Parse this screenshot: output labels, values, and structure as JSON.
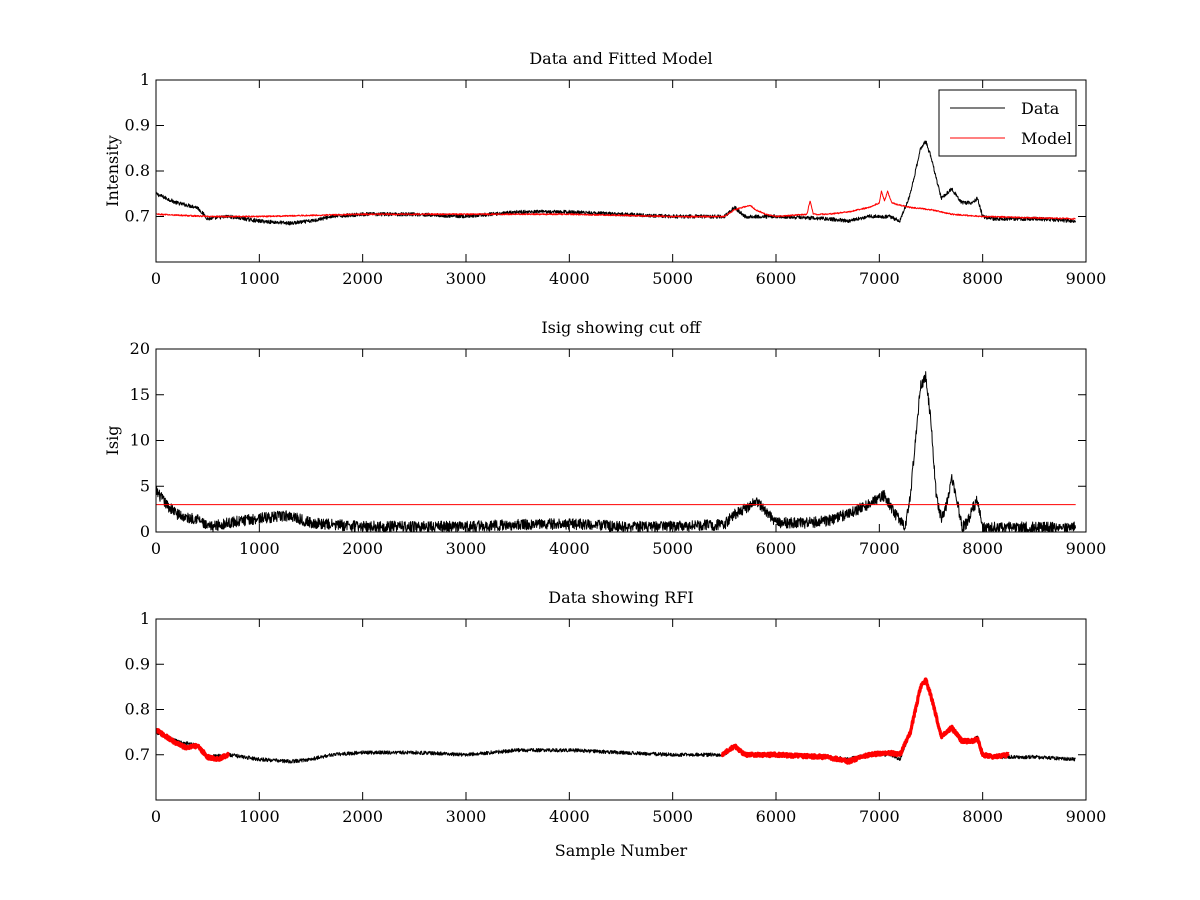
{
  "chart_data": [
    {
      "type": "line",
      "title": "Data and Fitted Model",
      "xlabel": "",
      "ylabel": "Intensity",
      "xlim": [
        0,
        9000
      ],
      "ylim": [
        0.6,
        1.0
      ],
      "xticks": [
        0,
        1000,
        2000,
        3000,
        4000,
        5000,
        6000,
        7000,
        8000,
        9000
      ],
      "yticks": [
        0.7,
        0.8,
        0.9,
        1
      ],
      "grid": false,
      "legend": {
        "position": "top-right",
        "entries": [
          "Data",
          "Model"
        ]
      },
      "series": [
        {
          "name": "Data",
          "color": "#000000",
          "noise": 0.004,
          "x": [
            0,
            100,
            200,
            300,
            400,
            500,
            700,
            1000,
            1300,
            1500,
            1700,
            2000,
            2500,
            3000,
            3500,
            4000,
            4500,
            5000,
            5500,
            5600,
            5700,
            6000,
            6500,
            6700,
            6900,
            7100,
            7200,
            7300,
            7400,
            7450,
            7500,
            7600,
            7700,
            7800,
            7900,
            7950,
            8000,
            8100,
            8500,
            8900
          ],
          "y": [
            0.75,
            0.74,
            0.73,
            0.725,
            0.72,
            0.695,
            0.7,
            0.69,
            0.685,
            0.69,
            0.7,
            0.705,
            0.705,
            0.7,
            0.71,
            0.71,
            0.705,
            0.7,
            0.7,
            0.72,
            0.7,
            0.7,
            0.695,
            0.69,
            0.7,
            0.7,
            0.69,
            0.75,
            0.85,
            0.865,
            0.83,
            0.74,
            0.76,
            0.73,
            0.73,
            0.74,
            0.7,
            0.695,
            0.695,
            0.69
          ]
        },
        {
          "name": "Model",
          "color": "#ff0000",
          "noise": 0.0015,
          "x": [
            0,
            500,
            1000,
            2000,
            3000,
            4000,
            5000,
            5500,
            5600,
            5750,
            5800,
            5900,
            6000,
            6300,
            6330,
            6360,
            6500,
            6700,
            6900,
            7000,
            7020,
            7050,
            7080,
            7120,
            7200,
            7300,
            7500,
            7700,
            8000,
            8900
          ],
          "y": [
            0.705,
            0.7,
            0.7,
            0.705,
            0.705,
            0.705,
            0.7,
            0.7,
            0.715,
            0.725,
            0.715,
            0.705,
            0.7,
            0.705,
            0.735,
            0.705,
            0.705,
            0.71,
            0.72,
            0.73,
            0.755,
            0.735,
            0.755,
            0.73,
            0.725,
            0.72,
            0.715,
            0.705,
            0.7,
            0.695
          ]
        }
      ]
    },
    {
      "type": "line",
      "title": "Isig showing cut off",
      "xlabel": "",
      "ylabel": "Isig",
      "xlim": [
        0,
        9000
      ],
      "ylim": [
        0,
        20
      ],
      "xticks": [
        0,
        1000,
        2000,
        3000,
        4000,
        5000,
        6000,
        7000,
        8000,
        9000
      ],
      "yticks": [
        0,
        5,
        10,
        15,
        20
      ],
      "grid": false,
      "series": [
        {
          "color": "#000000",
          "noise": 0.6,
          "x": [
            0,
            100,
            200,
            300,
            400,
            500,
            700,
            1000,
            1300,
            1500,
            1700,
            2000,
            2500,
            3000,
            3500,
            4000,
            4500,
            5000,
            5500,
            5600,
            5700,
            5800,
            6000,
            6300,
            6500,
            6700,
            6900,
            7050,
            7150,
            7250,
            7300,
            7350,
            7400,
            7450,
            7500,
            7550,
            7600,
            7650,
            7700,
            7750,
            7800,
            7850,
            7900,
            7950,
            8000,
            8100,
            8500,
            8900
          ],
          "y": [
            4.5,
            3.0,
            2.0,
            1.5,
            1.5,
            0.5,
            1.0,
            1.5,
            1.8,
            1.0,
            0.8,
            0.6,
            0.6,
            0.6,
            0.8,
            0.9,
            0.6,
            0.6,
            0.8,
            2.0,
            2.5,
            3.5,
            1.0,
            1.0,
            1.2,
            2.0,
            3.0,
            4.0,
            2.0,
            0.5,
            4.0,
            10.0,
            16.0,
            17.0,
            12.0,
            4.0,
            1.5,
            3.0,
            6.0,
            3.5,
            0.5,
            1.0,
            2.5,
            3.5,
            0.5,
            0.5,
            0.5,
            0.5
          ]
        },
        {
          "color": "#ff0000",
          "noise": 0,
          "x": [
            0,
            8900
          ],
          "y": [
            3,
            3
          ]
        }
      ]
    },
    {
      "type": "line",
      "title": "Data showing RFI",
      "xlabel": "Sample Number",
      "ylabel": "",
      "xlim": [
        0,
        9000
      ],
      "ylim": [
        0.6,
        1.0
      ],
      "xticks": [
        0,
        1000,
        2000,
        3000,
        4000,
        5000,
        6000,
        7000,
        8000,
        9000
      ],
      "yticks": [
        0.7,
        0.8,
        0.9,
        1
      ],
      "grid": false,
      "series": [
        {
          "color": "#000000",
          "noise": 0.004,
          "x": [
            0,
            100,
            200,
            300,
            400,
            500,
            700,
            1000,
            1300,
            1500,
            1700,
            2000,
            2500,
            3000,
            3500,
            4000,
            4500,
            5000,
            5500,
            5600,
            5700,
            6000,
            6500,
            6700,
            6900,
            7100,
            7200,
            7300,
            7400,
            7450,
            7500,
            7600,
            7700,
            7800,
            7900,
            7950,
            8000,
            8100,
            8500,
            8900
          ],
          "y": [
            0.75,
            0.74,
            0.73,
            0.725,
            0.72,
            0.695,
            0.7,
            0.69,
            0.685,
            0.69,
            0.7,
            0.705,
            0.705,
            0.7,
            0.71,
            0.71,
            0.705,
            0.7,
            0.7,
            0.72,
            0.7,
            0.7,
            0.695,
            0.69,
            0.7,
            0.7,
            0.69,
            0.75,
            0.85,
            0.865,
            0.83,
            0.74,
            0.76,
            0.73,
            0.73,
            0.74,
            0.7,
            0.695,
            0.695,
            0.69
          ]
        },
        {
          "color": "#ff0000",
          "noise": 0.004,
          "bold": true,
          "x": [
            0,
            100,
            200,
            300,
            400,
            500,
            600,
            700
          ],
          "y": [
            0.755,
            0.74,
            0.725,
            0.715,
            0.72,
            0.695,
            0.69,
            0.7
          ]
        },
        {
          "color": "#ff0000",
          "noise": 0.004,
          "bold": true,
          "x": [
            5480,
            5600,
            5700,
            6000,
            6500,
            6700,
            6900,
            7100,
            7200,
            7300,
            7400,
            7450,
            7500,
            7600,
            7700,
            7800,
            7900,
            7950,
            8000,
            8100,
            8250
          ],
          "y": [
            0.7,
            0.72,
            0.7,
            0.7,
            0.695,
            0.685,
            0.7,
            0.705,
            0.7,
            0.75,
            0.85,
            0.865,
            0.83,
            0.74,
            0.76,
            0.73,
            0.73,
            0.735,
            0.7,
            0.695,
            0.7
          ]
        }
      ]
    }
  ]
}
